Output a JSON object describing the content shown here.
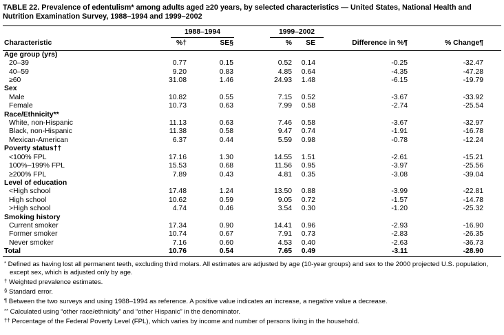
{
  "page": {
    "title": "TABLE 22. Prevalence of edentulism* among adults aged ≥20 years, by selected characteristics — United States, National Health and Nutrition Examination Survey, 1988–1994 and 1999–2002"
  },
  "table": {
    "group_headers": [
      "1988–1994",
      "1999–2002"
    ],
    "columns": [
      "Characteristic",
      "%†",
      "SE§",
      "%",
      "SE",
      "Difference in %¶",
      "% Change¶"
    ],
    "rows": [
      {
        "type": "section",
        "label": "Age group (yrs)"
      },
      {
        "type": "data",
        "label": "20–39",
        "values": [
          "0.77",
          "0.15",
          "0.52",
          "0.14",
          "-0.25",
          "-32.47"
        ]
      },
      {
        "type": "data",
        "label": "40–59",
        "values": [
          "9.20",
          "0.83",
          "4.85",
          "0.64",
          "-4.35",
          "-47.28"
        ]
      },
      {
        "type": "data",
        "label": "≥60",
        "values": [
          "31.08",
          "1.46",
          "24.93",
          "1.48",
          "-6.15",
          "-19.79"
        ]
      },
      {
        "type": "section",
        "label": "Sex"
      },
      {
        "type": "data",
        "label": "Male",
        "values": [
          "10.82",
          "0.55",
          "7.15",
          "0.52",
          "-3.67",
          "-33.92"
        ]
      },
      {
        "type": "data",
        "label": "Female",
        "values": [
          "10.73",
          "0.63",
          "7.99",
          "0.58",
          "-2.74",
          "-25.54"
        ]
      },
      {
        "type": "section",
        "label": "Race/Ethnicity**"
      },
      {
        "type": "data",
        "label": "White, non-Hispanic",
        "values": [
          "11.13",
          "0.63",
          "7.46",
          "0.58",
          "-3.67",
          "-32.97"
        ]
      },
      {
        "type": "data",
        "label": "Black, non-Hispanic",
        "values": [
          "11.38",
          "0.58",
          "9.47",
          "0.74",
          "-1.91",
          "-16.78"
        ]
      },
      {
        "type": "data",
        "label": "Mexican-American",
        "values": [
          "6.37",
          "0.44",
          "5.59",
          "0.98",
          "-0.78",
          "-12.24"
        ]
      },
      {
        "type": "section",
        "label": "Poverty status††"
      },
      {
        "type": "data",
        "label": "<100% FPL",
        "values": [
          "17.16",
          "1.30",
          "14.55",
          "1.51",
          "-2.61",
          "-15.21"
        ]
      },
      {
        "type": "data",
        "label": "100%–199% FPL",
        "values": [
          "15.53",
          "0.68",
          "11.56",
          "0.95",
          "-3.97",
          "-25.56"
        ]
      },
      {
        "type": "data",
        "label": "≥200% FPL",
        "values": [
          "7.89",
          "0.43",
          "4.81",
          "0.35",
          "-3.08",
          "-39.04"
        ]
      },
      {
        "type": "section",
        "label": "Level of education"
      },
      {
        "type": "data",
        "label": "<High school",
        "values": [
          "17.48",
          "1.24",
          "13.50",
          "0.88",
          "-3.99",
          "-22.81"
        ]
      },
      {
        "type": "data",
        "label": "High school",
        "values": [
          "10.62",
          "0.59",
          "9.05",
          "0.72",
          "-1.57",
          "-14.78"
        ]
      },
      {
        "type": "data",
        "label": ">High school",
        "values": [
          "4.74",
          "0.46",
          "3.54",
          "0.30",
          "-1.20",
          "-25.32"
        ]
      },
      {
        "type": "section",
        "label": "Smoking history"
      },
      {
        "type": "data",
        "label": "Current smoker",
        "values": [
          "17.34",
          "0.90",
          "14.41",
          "0.96",
          "-2.93",
          "-16.90"
        ]
      },
      {
        "type": "data",
        "label": "Former smoker",
        "values": [
          "10.74",
          "0.67",
          "7.91",
          "0.73",
          "-2.83",
          "-26.35"
        ]
      },
      {
        "type": "data",
        "label": "Never smoker",
        "values": [
          "7.16",
          "0.60",
          "4.53",
          "0.40",
          "-2.63",
          "-36.73"
        ]
      },
      {
        "type": "total",
        "label": "Total",
        "values": [
          "10.76",
          "0.54",
          "7.65",
          "0.49",
          "-3.11",
          "-28.90"
        ]
      }
    ]
  },
  "footnotes": [
    {
      "symbol": "*",
      "text": "Defined as having lost all permanent teeth, excluding third molars. All estimates are adjusted by age (10-year groups) and sex to the 2000 projected U.S. population, except sex, which is adjusted only by age."
    },
    {
      "symbol": "†",
      "text": "Weighted prevalence estimates."
    },
    {
      "symbol": "§",
      "text": "Standard error."
    },
    {
      "symbol": "¶",
      "text": "Between the two surveys and using 1988–1994 as reference. A positive value indicates an increase, a negative value a decrease."
    },
    {
      "symbol": "**",
      "text": "Calculated using “other race/ethnicity” and “other Hispanic” in the denominator."
    },
    {
      "symbol": "††",
      "text": "Percentage of the Federal Poverty Level (FPL), which varies by income and number of persons living in the household."
    }
  ]
}
